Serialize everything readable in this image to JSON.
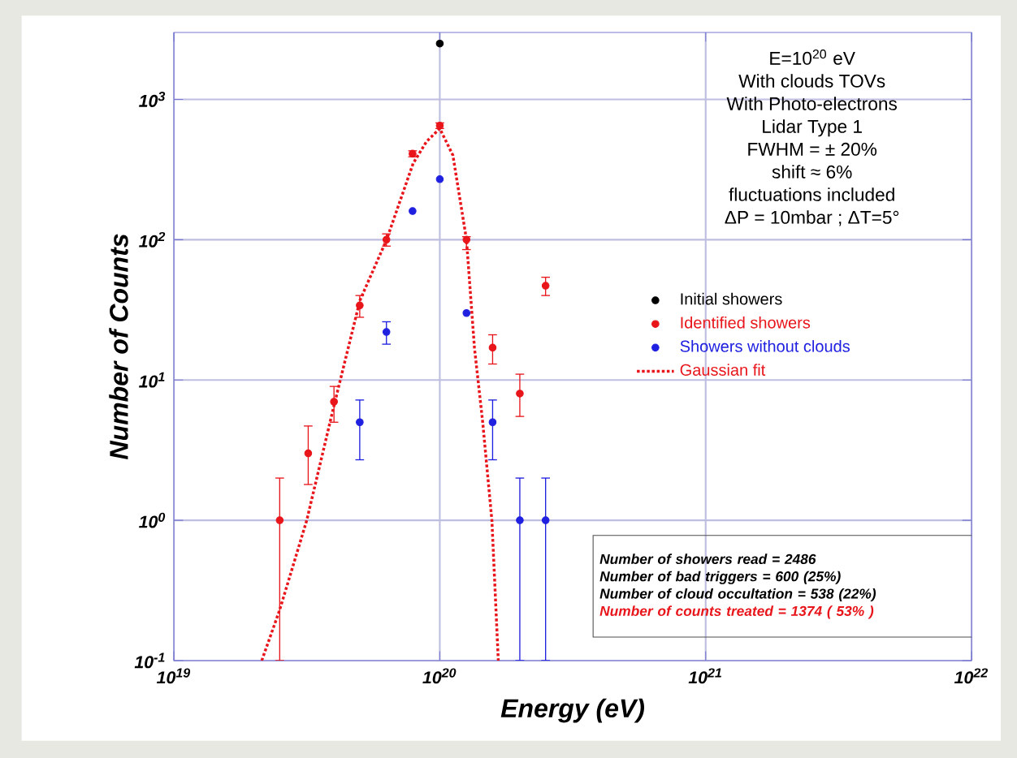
{
  "chart_data": {
    "type": "scatter",
    "xlabel": "Energy (eV)",
    "ylabel": "Number of Counts",
    "log": "xy",
    "grid": true,
    "legend": "right",
    "xlim": [
      1e+19,
      1e+22
    ],
    "ylim": [
      0.1,
      3000
    ],
    "xticks": [
      {
        "value": 1e+19,
        "label": "10$^{19}$"
      },
      {
        "value": 1e+20,
        "label": "10$^{20}$"
      },
      {
        "value": 1e+21,
        "label": "10$^{21}$"
      },
      {
        "value": 1e+22,
        "label": "10$^{22}$"
      }
    ],
    "yticks": [
      {
        "value": 0.1,
        "label": "10$^{-1}$"
      },
      {
        "value": 1,
        "label": "10$^{0}$"
      },
      {
        "value": 10,
        "label": "10$^{1}$"
      },
      {
        "value": 100,
        "label": "10$^{2}$"
      },
      {
        "value": 1000,
        "label": "10$^{3}$"
      }
    ],
    "series": [
      {
        "name": "Initial showers",
        "color": "#000000",
        "marker": "circle",
        "x": [
          1e+20
        ],
        "values": [
          2500
        ]
      },
      {
        "name": "Identified showers",
        "color": "#e8151b",
        "marker": "circle",
        "x": [
          2.5e+19,
          3.2e+19,
          4e+19,
          5e+19,
          6.3e+19,
          7.9e+19,
          1e+20,
          1.26e+20,
          1.58e+20,
          2e+20,
          2.5e+20
        ],
        "values": [
          1,
          3,
          7,
          34,
          100,
          410,
          650,
          100,
          17,
          8,
          47
        ],
        "errors": [
          [
            0.1,
            2
          ],
          [
            1.8,
            4.7
          ],
          [
            5,
            9
          ],
          [
            28,
            40
          ],
          [
            90,
            110
          ],
          [
            390,
            430
          ],
          [
            620,
            680
          ],
          [
            85,
            105
          ],
          [
            13,
            21
          ],
          [
            5.5,
            11
          ],
          [
            40,
            54
          ]
        ]
      },
      {
        "name": "Showers without clouds",
        "color": "#2020e0",
        "marker": "circle",
        "x": [
          5e+19,
          6.3e+19,
          7.9e+19,
          1e+20,
          1.26e+20,
          1.58e+20,
          2e+20,
          2.5e+20
        ],
        "values": [
          5,
          22,
          160,
          270,
          30,
          5,
          1,
          1
        ],
        "errors": [
          [
            2.7,
            7.2
          ],
          [
            18,
            26
          ],
          null,
          null,
          null,
          [
            2.7,
            7.2
          ],
          [
            0.1,
            2
          ],
          [
            0.1,
            2
          ]
        ]
      },
      {
        "name": "Gaussian fit",
        "color": "#e8151b",
        "type": "line",
        "marker": "none",
        "line_style": "dotted",
        "x": [
          2.14e+19,
          2.5e+19,
          3.16e+19,
          3.98e+19,
          5.01e+19,
          6.31e+19,
          7.94e+19,
          8.91e+19,
          1e+20,
          1.12e+20,
          1.26e+20,
          1.35e+20,
          1.45e+20,
          1.57e+20,
          1.66e+20
        ],
        "values": [
          0.1,
          0.23,
          1,
          6.3,
          37,
          100,
          350,
          500,
          620,
          400,
          100,
          17,
          5,
          1,
          0.1
        ]
      }
    ],
    "annotations": [
      "E=10$^{20}$ eV",
      "With clouds TOVs",
      "With Photo-electrons",
      "Lidar Type 1",
      "FWHM = ± 20%",
      "shift ≈ 6%",
      "fluctuations included",
      "ΔP = 10mbar ; ΔT=5°",
      "Number of showers read = 2486",
      "Number of bad triggers = 600 (25%)",
      "Number of cloud occultation = 538 (22%)",
      "Number of counts treated = 1374 ( 53% )"
    ]
  }
}
